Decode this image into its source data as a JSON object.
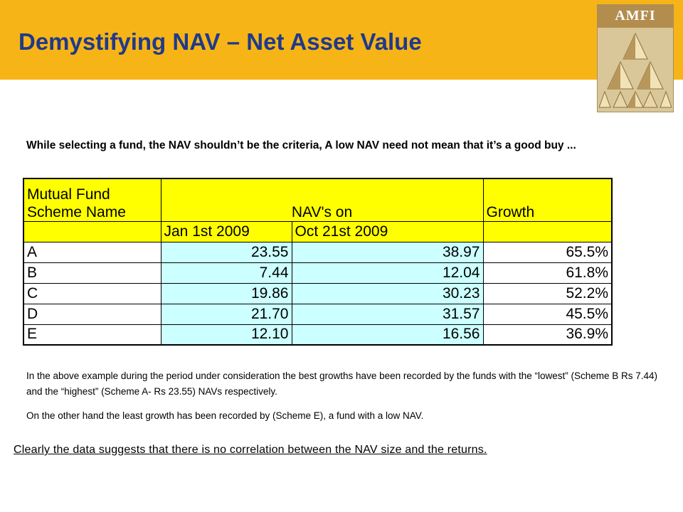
{
  "slide": {
    "title": "Demystifying NAV – Net Asset Value",
    "logo_text": "AMFI",
    "intro": "While selecting a fund, the NAV shouldn’t be the criteria,  A low NAV need not mean that it’s a good buy ...",
    "table": {
      "header_col1_line1": "Mutual Fund",
      "header_col1_line2": "Scheme Name",
      "header_navs": "NAV's on",
      "header_growth": "Growth",
      "date1": "Jan 1st 2009",
      "date2": "Oct 21st 2009",
      "rows": [
        {
          "scheme": "A",
          "nav1": "23.55",
          "nav2": "38.97",
          "growth": "65.5%"
        },
        {
          "scheme": "B",
          "nav1": "7.44",
          "nav2": "12.04",
          "growth": "61.8%"
        },
        {
          "scheme": "C",
          "nav1": "19.86",
          "nav2": "30.23",
          "growth": "52.2%"
        },
        {
          "scheme": "D",
          "nav1": "21.70",
          "nav2": "31.57",
          "growth": "45.5%"
        },
        {
          "scheme": "E",
          "nav1": "12.10",
          "nav2": "16.56",
          "growth": "36.9%"
        }
      ]
    },
    "para1": "In the above example during the period under consideration the best growths  have been recorded by the funds with the “lowest” (Scheme B Rs 7.44) and the “highest”  (Scheme A- Rs 23.55) NAVs respectively.",
    "para2": "On the other hand the least growth has been recorded by (Scheme E), a  fund with a low NAV.",
    "conclusion": "Clearly the data suggests that there is no correlation between the NAV size and the returns. "
  },
  "colors": {
    "header_band": "#f7b416",
    "title_text": "#1f3a8a",
    "table_header_fill": "#ffff00",
    "table_value_fill": "#ccffff",
    "logo_band": "#b38d4e",
    "logo_body": "#d9c79a"
  }
}
